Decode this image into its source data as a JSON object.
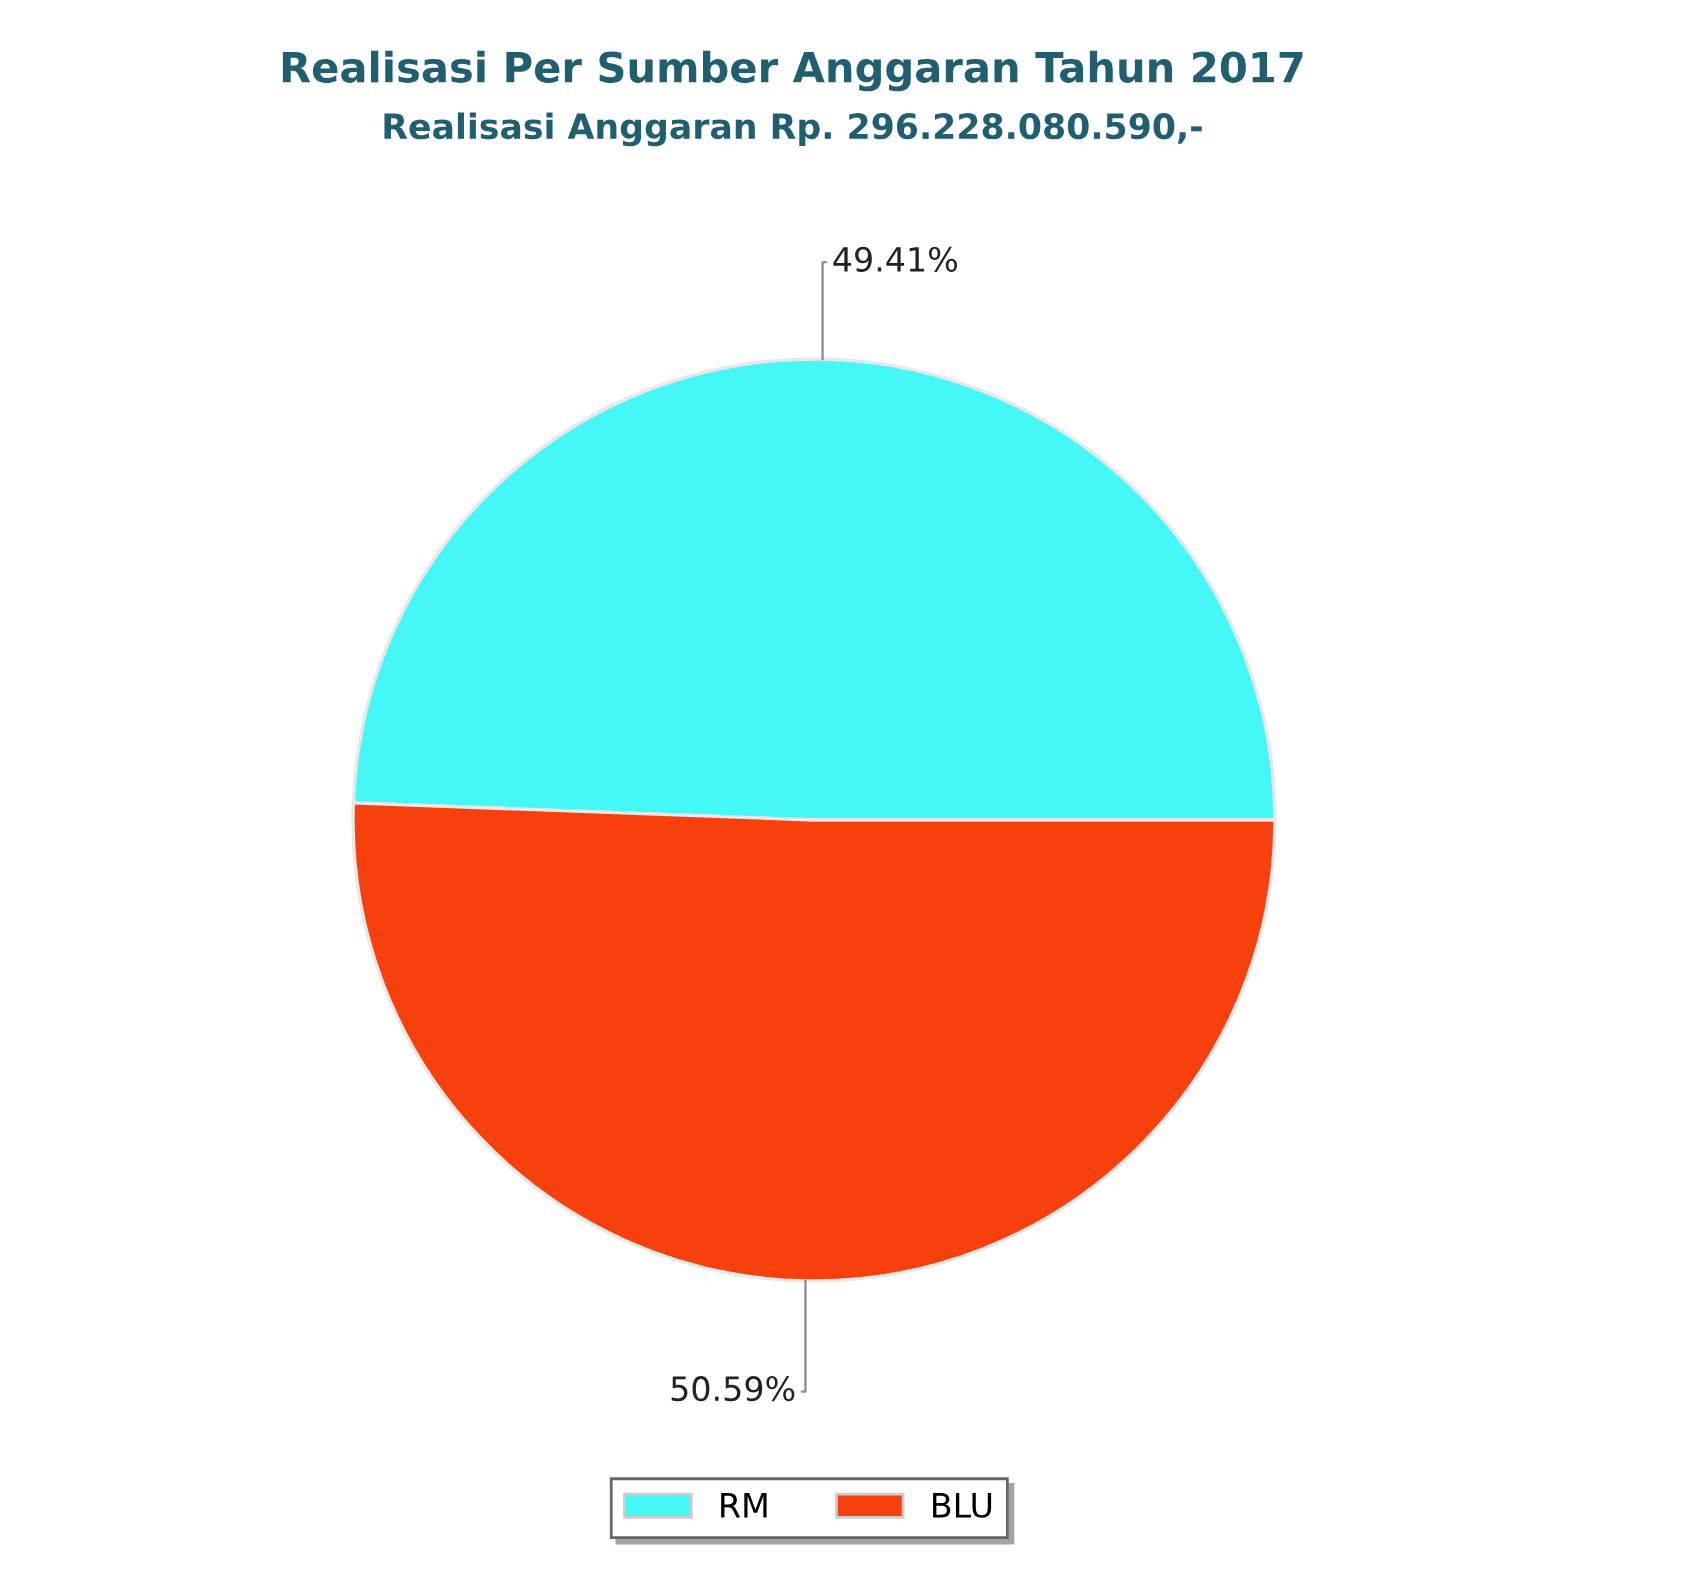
{
  "chart_data": {
    "type": "pie",
    "title": "Realisasi Per Sumber Anggaran Tahun 2017",
    "subtitle": "Realisasi Anggaran Rp. 296.228.080.590,-",
    "categories": [
      "RM",
      "BLU"
    ],
    "values": [
      49.41,
      50.59
    ],
    "colors": [
      "#44f8f8",
      "#f8400c"
    ],
    "value_labels": [
      "49.41%",
      "50.59%"
    ],
    "legend": "bottom"
  }
}
